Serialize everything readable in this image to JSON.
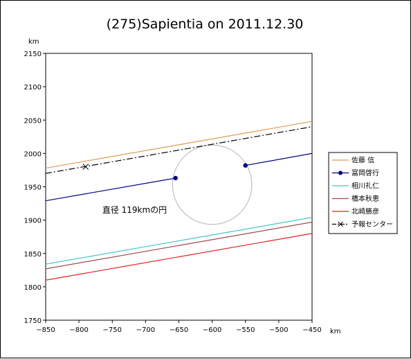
{
  "chart_data": {
    "type": "line",
    "title": "(275)Sapientia on 2011.12.30",
    "xlabel": "km",
    "ylabel": "km",
    "xlim": [
      -850,
      -450
    ],
    "ylim": [
      1750,
      2150
    ],
    "x_ticks": [
      -850,
      -800,
      -750,
      -700,
      -650,
      -600,
      -550,
      -500,
      -450
    ],
    "y_ticks": [
      1750,
      1800,
      1850,
      1900,
      1950,
      2000,
      2050,
      2100,
      2150
    ],
    "grid": false,
    "legend_position": "right",
    "annotation": "直径 119kmの円",
    "circle": {
      "cx": -600,
      "cy": 1953,
      "r": 59.5,
      "color": "#c0c0c0"
    },
    "series": [
      {
        "name": "佐藤 信",
        "color": "#e09a50",
        "style": "solid",
        "x": [
          -850,
          -450
        ],
        "y": [
          1978,
          2048
        ]
      },
      {
        "name": "冨岡啓行",
        "color": "#000080",
        "style": "solid",
        "marker": "dot",
        "x": [
          -850,
          -655,
          -550,
          -450
        ],
        "y": [
          1929,
          1963,
          1982,
          2000
        ],
        "segments": [
          [
            0,
            1
          ],
          [
            2,
            3
          ]
        ],
        "marker_points": [
          1,
          2
        ]
      },
      {
        "name": "相川礼仁",
        "color": "#40c8c8",
        "style": "solid",
        "x": [
          -850,
          -450
        ],
        "y": [
          1834,
          1904
        ]
      },
      {
        "name": "橋本秋恵",
        "color": "#a04848",
        "style": "solid",
        "x": [
          -850,
          -450
        ],
        "y": [
          1827,
          1897
        ]
      },
      {
        "name": "北崎勝彦",
        "color": "#e02020",
        "style": "solid",
        "x": [
          -850,
          -450
        ],
        "y": [
          1810,
          1880
        ]
      },
      {
        "name": "予報センター",
        "color": "#000000",
        "style": "dashdot",
        "marker": "x",
        "x": [
          -850,
          -450
        ],
        "y": [
          1970,
          2040
        ],
        "marker_at": {
          "x": -790,
          "y": 1980
        }
      }
    ]
  }
}
